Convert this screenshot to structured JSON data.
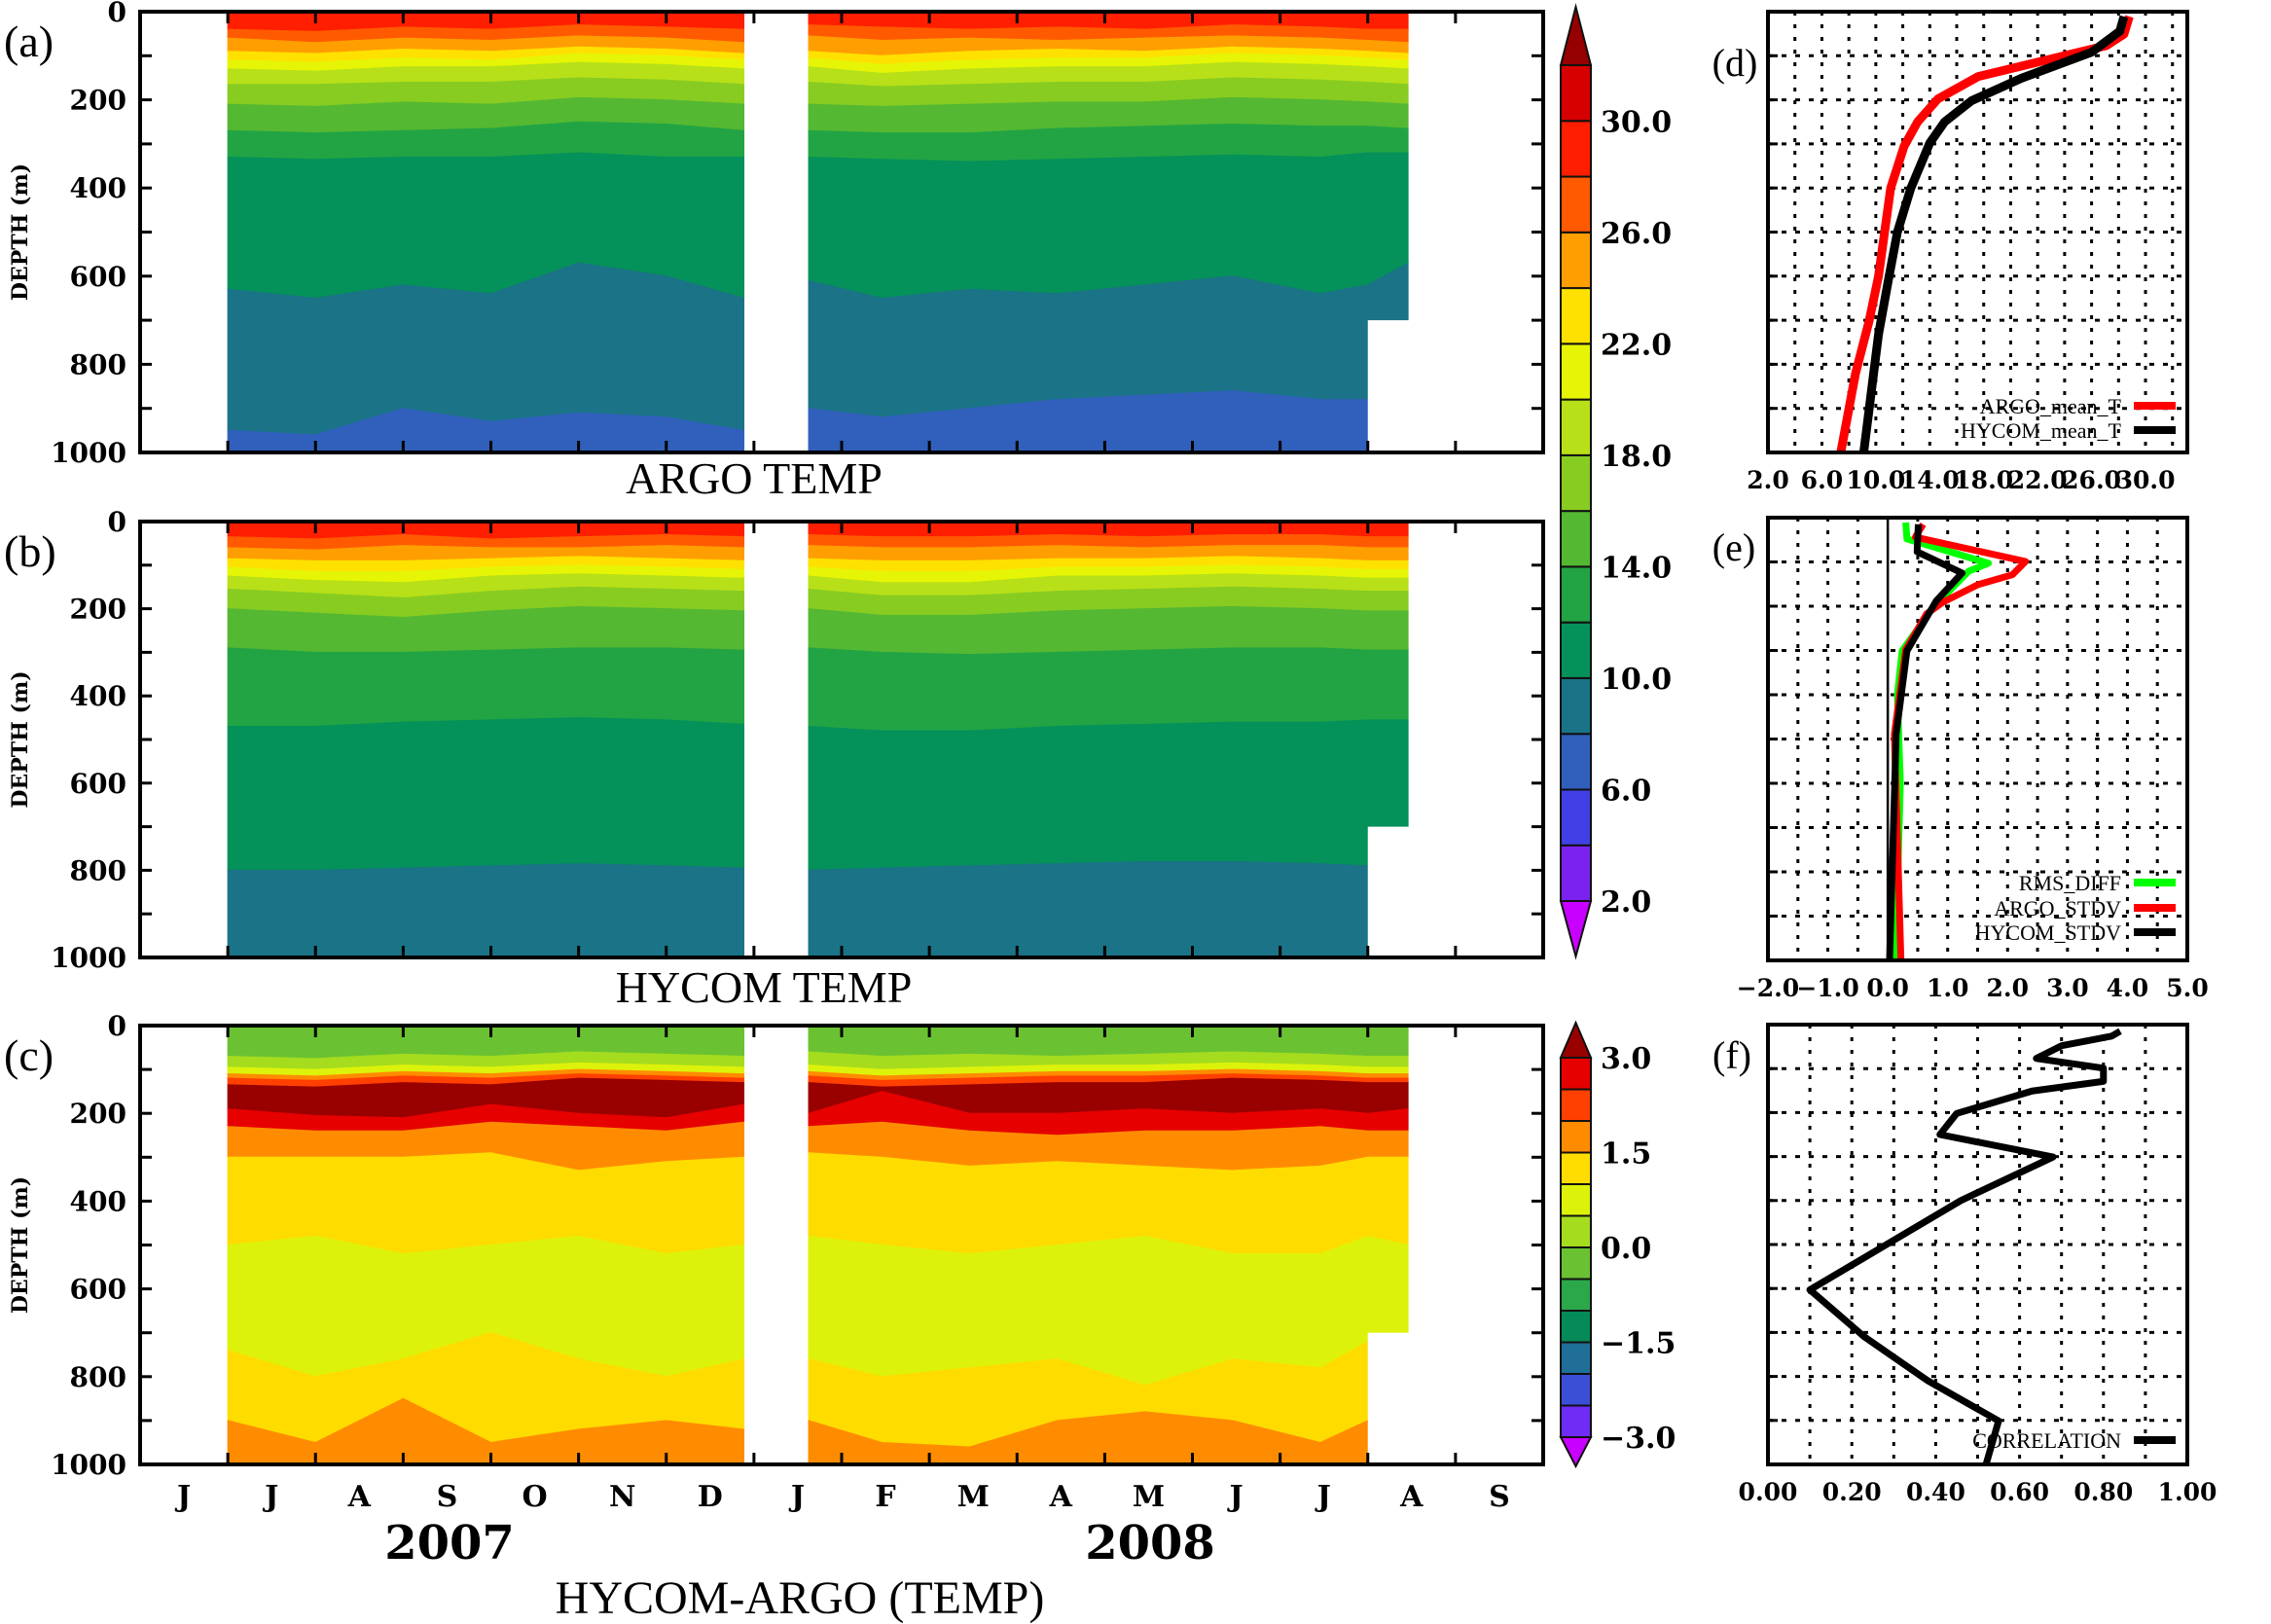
{
  "figure": {
    "x_axis": {
      "month_labels": [
        "J",
        "J",
        "A",
        "S",
        "O",
        "N",
        "D",
        "J",
        "F",
        "M",
        "A",
        "M",
        "J",
        "J",
        "A",
        "S"
      ],
      "start": "2007-06-01",
      "end": "2008-09-30",
      "year_labels": [
        "2007",
        "2008"
      ]
    },
    "depth_ticks": [
      "0",
      "200",
      "400",
      "600",
      "800",
      "1000"
    ],
    "ylabel": "DEPTH (m)"
  },
  "chart_data": [
    {
      "type": "heatmap",
      "panel_label": "(a)",
      "title": "ARGO TEMP",
      "ylabel": "DEPTH (m)",
      "ylim": [
        1000,
        0
      ],
      "times": [
        "2007-07-01",
        "2007-08-01",
        "2007-09-01",
        "2007-10-01",
        "2007-11-01",
        "2007-12-01",
        "2007-12-28",
        "2008-01-20",
        "2008-02-15",
        "2008-03-15",
        "2008-04-15",
        "2008-05-15",
        "2008-06-15",
        "2008-07-15",
        "2008-08-01",
        "2008-08-15"
      ],
      "segments": [
        [
          "2007-07-01",
          "2007-12-28"
        ],
        [
          "2008-01-20",
          "2008-08-15"
        ]
      ],
      "deep_cutoff": {
        "depth": 700,
        "date": "2008-08-01"
      },
      "isotherm_levels": [
        28,
        26,
        24,
        22,
        20,
        18,
        16,
        14,
        12,
        10,
        8
      ],
      "isotherm_depths": [
        [
          40,
          45,
          35,
          40,
          30,
          35,
          40,
          30,
          35,
          40,
          35,
          40,
          30,
          35,
          40,
          40
        ],
        [
          60,
          70,
          60,
          65,
          55,
          60,
          70,
          55,
          65,
          60,
          65,
          60,
          55,
          60,
          65,
          70
        ],
        [
          90,
          95,
          85,
          90,
          80,
          85,
          95,
          90,
          100,
          90,
          85,
          90,
          80,
          85,
          90,
          95
        ],
        [
          110,
          115,
          105,
          110,
          95,
          100,
          110,
          105,
          120,
          110,
          105,
          105,
          95,
          100,
          105,
          110
        ],
        [
          130,
          135,
          125,
          125,
          115,
          120,
          130,
          125,
          140,
          130,
          125,
          125,
          115,
          120,
          125,
          130
        ],
        [
          165,
          165,
          160,
          160,
          150,
          155,
          165,
          160,
          170,
          165,
          160,
          160,
          150,
          155,
          160,
          165
        ],
        [
          210,
          215,
          205,
          210,
          195,
          200,
          210,
          210,
          215,
          210,
          205,
          205,
          195,
          200,
          205,
          210
        ],
        [
          270,
          275,
          270,
          265,
          250,
          255,
          270,
          270,
          275,
          275,
          265,
          260,
          255,
          260,
          260,
          265
        ],
        [
          330,
          335,
          330,
          330,
          320,
          330,
          330,
          330,
          335,
          340,
          335,
          330,
          325,
          330,
          320,
          320
        ],
        [
          630,
          650,
          620,
          640,
          570,
          600,
          650,
          610,
          650,
          630,
          640,
          620,
          600,
          640,
          620,
          570
        ],
        [
          950,
          960,
          900,
          930,
          910,
          920,
          950,
          900,
          920,
          900,
          880,
          870,
          860,
          880,
          880,
          870
        ]
      ]
    },
    {
      "type": "heatmap",
      "panel_label": "(b)",
      "title": "HYCOM TEMP",
      "ylabel": "DEPTH (m)",
      "ylim": [
        1000,
        0
      ],
      "isotherm_levels": [
        28,
        26,
        24,
        22,
        20,
        18,
        16,
        14,
        12,
        10
      ],
      "isotherm_depths": [
        [
          35,
          40,
          30,
          40,
          35,
          30,
          35,
          30,
          35,
          35,
          30,
          35,
          30,
          30,
          35,
          35
        ],
        [
          60,
          65,
          55,
          60,
          60,
          55,
          60,
          55,
          60,
          60,
          55,
          60,
          55,
          55,
          60,
          60
        ],
        [
          85,
          90,
          90,
          85,
          80,
          85,
          90,
          85,
          90,
          90,
          85,
          85,
          80,
          85,
          90,
          90
        ],
        [
          105,
          115,
          115,
          105,
          100,
          105,
          110,
          105,
          115,
          115,
          105,
          105,
          100,
          105,
          110,
          110
        ],
        [
          125,
          135,
          140,
          125,
          120,
          125,
          130,
          125,
          140,
          140,
          125,
          125,
          120,
          125,
          130,
          130
        ],
        [
          155,
          165,
          175,
          160,
          150,
          155,
          160,
          155,
          170,
          170,
          160,
          155,
          150,
          155,
          160,
          160
        ],
        [
          200,
          210,
          220,
          205,
          195,
          200,
          205,
          200,
          215,
          215,
          205,
          200,
          195,
          200,
          205,
          205
        ],
        [
          290,
          300,
          300,
          295,
          290,
          290,
          295,
          290,
          300,
          305,
          300,
          295,
          290,
          290,
          295,
          295
        ],
        [
          470,
          470,
          460,
          455,
          450,
          455,
          465,
          470,
          480,
          480,
          470,
          465,
          460,
          460,
          455,
          455
        ],
        [
          800,
          800,
          795,
          790,
          785,
          790,
          795,
          800,
          795,
          790,
          785,
          780,
          780,
          785,
          790,
          790
        ]
      ],
      "colorbar": {
        "bin_lower_bounds": [
          2,
          4,
          6,
          8,
          10,
          12,
          14,
          16,
          18,
          20,
          22,
          24,
          26,
          28,
          30
        ],
        "colors": [
          "#7b22f0",
          "#4040e6",
          "#3060bc",
          "#1a7386",
          "#05915a",
          "#22a444",
          "#55b832",
          "#88cc22",
          "#b8e018",
          "#e6f505",
          "#ffe100",
          "#ff9e00",
          "#ff5a00",
          "#ff1e00",
          "#d60000"
        ],
        "under_color": "#c800ff",
        "over_color": "#960000",
        "range": [
          2,
          32
        ],
        "tick_values": [
          30,
          26,
          22,
          18,
          14,
          10,
          6,
          2
        ],
        "tick_labels": [
          "30.0",
          "26.0",
          "22.0",
          "18.0",
          "14.0",
          "10.0",
          "6.0",
          "2.0"
        ]
      }
    },
    {
      "type": "heatmap",
      "panel_label": "(c)",
      "title": "HYCOM-ARGO (TEMP)",
      "ylabel": "DEPTH (m)",
      "ylim": [
        1000,
        0
      ],
      "layers": [
        {
          "value": -0.25,
          "bottom": [
            70,
            75,
            65,
            70,
            60,
            65,
            70,
            60,
            70,
            65,
            70,
            65,
            60,
            65,
            70,
            70
          ]
        },
        {
          "value": 0.25,
          "bottom": [
            95,
            100,
            90,
            95,
            85,
            90,
            95,
            90,
            100,
            95,
            90,
            90,
            85,
            90,
            95,
            95
          ]
        },
        {
          "value": 0.75,
          "bottom": [
            110,
            115,
            105,
            110,
            100,
            105,
            110,
            105,
            115,
            110,
            105,
            105,
            100,
            105,
            110,
            110
          ]
        },
        {
          "value": 1.75,
          "bottom": [
            120,
            125,
            115,
            120,
            110,
            115,
            120,
            115,
            125,
            120,
            115,
            115,
            110,
            115,
            120,
            120
          ]
        },
        {
          "value": 2.25,
          "bottom": [
            135,
            140,
            130,
            135,
            120,
            125,
            130,
            130,
            140,
            135,
            130,
            130,
            120,
            125,
            130,
            130
          ]
        },
        {
          "value": 3.2,
          "bottom": [
            190,
            205,
            210,
            180,
            200,
            210,
            180,
            200,
            150,
            200,
            200,
            190,
            200,
            190,
            200,
            190
          ]
        },
        {
          "value": 2.75,
          "bottom": [
            230,
            240,
            240,
            220,
            230,
            240,
            220,
            230,
            220,
            240,
            250,
            240,
            240,
            230,
            240,
            240
          ]
        },
        {
          "value": 1.75,
          "bottom": [
            300,
            300,
            300,
            290,
            330,
            310,
            300,
            290,
            300,
            320,
            310,
            320,
            330,
            320,
            300,
            300
          ]
        },
        {
          "value": 1.25,
          "bottom": [
            500,
            480,
            520,
            500,
            480,
            520,
            500,
            480,
            500,
            520,
            500,
            480,
            520,
            520,
            480,
            500
          ]
        },
        {
          "value": 0.75,
          "bottom": [
            740,
            800,
            760,
            700,
            760,
            800,
            760,
            760,
            800,
            780,
            760,
            820,
            760,
            780,
            720,
            720
          ]
        },
        {
          "value": 1.25,
          "bottom": [
            900,
            950,
            850,
            950,
            920,
            900,
            920,
            900,
            950,
            960,
            900,
            880,
            900,
            950,
            900,
            900
          ]
        },
        {
          "value": 1.75,
          "bottom": [
            1000,
            1000,
            1000,
            1000,
            1000,
            1000,
            1000,
            1000,
            1000,
            1000,
            1000,
            1000,
            1000,
            1000,
            1000,
            1000
          ]
        }
      ],
      "colorbar": {
        "bin_lower_bounds": [
          -3,
          -2.5,
          -2,
          -1.5,
          -1,
          -0.5,
          0,
          0.5,
          1,
          1.5,
          2,
          2.5
        ],
        "colors": [
          "#6e2cf5",
          "#3b4fd6",
          "#1f6f99",
          "#058a5a",
          "#2ba84a",
          "#6ac232",
          "#a5dc1e",
          "#ddf20a",
          "#ffdc00",
          "#ff8c00",
          "#ff4000",
          "#e60000"
        ],
        "under_color": "#c800ff",
        "over_color": "#990000",
        "range": [
          -3,
          3
        ],
        "tick_values": [
          3,
          1.5,
          0,
          -1.5,
          -3
        ],
        "tick_labels": [
          "3.0",
          "1.5",
          "0.0",
          "−1.5",
          "−3.0"
        ]
      }
    },
    {
      "type": "line",
      "panel_label": "(d)",
      "xlim": [
        2,
        33.1
      ],
      "ylim": [
        1000,
        0
      ],
      "grid": true,
      "grid_x_step": 2,
      "grid_y_step": 100,
      "x_tick_values": [
        2,
        6,
        10,
        14,
        18,
        22,
        26,
        30
      ],
      "x_tick_labels": [
        "2.0",
        "6.0",
        "10.0",
        "14.0",
        "18.0",
        "22.0",
        "26.0",
        "30.0"
      ],
      "legend_position": "bottom-right",
      "series": [
        {
          "name": "ARGO_mean_T",
          "color": "#ff0000",
          "depth": [
            11,
            51,
            77,
            147,
            198,
            250,
            305,
            400,
            600,
            702,
            820,
            1000
          ],
          "values": [
            28.8,
            28.4,
            27.1,
            17.6,
            14.6,
            13.1,
            12.1,
            11.1,
            10.2,
            9.5,
            8.5,
            7.4
          ]
        },
        {
          "name": "HYCOM_mean_T",
          "color": "#000000",
          "depth": [
            11,
            44,
            92,
            151,
            202,
            250,
            298,
            400,
            500,
            614,
            732,
            1000
          ],
          "values": [
            28.4,
            28.1,
            26.0,
            20.8,
            17.1,
            15.1,
            14.0,
            12.6,
            11.6,
            10.9,
            10.2,
            9.1
          ]
        }
      ]
    },
    {
      "type": "line",
      "panel_label": "(e)",
      "xlim": [
        -2,
        5
      ],
      "ylim": [
        1000,
        0
      ],
      "grid": true,
      "grid_x_step": 0.5,
      "grid_y_step": 100,
      "x_tick_values": [
        -2,
        -1,
        0,
        1,
        2,
        3,
        4,
        5
      ],
      "x_tick_labels": [
        "−2.0",
        "−1.0",
        "0.0",
        "1.0",
        "2.0",
        "3.0",
        "4.0",
        "5.0"
      ],
      "legend_position": "bottom-right",
      "series": [
        {
          "name": "RMS_DIFF",
          "color": "#00ff00",
          "depth": [
            11,
            48,
            103,
            121,
            202,
            301,
            400,
            600,
            1000
          ],
          "values": [
            0.3,
            0.32,
            1.68,
            1.35,
            0.76,
            0.24,
            0.16,
            0.21,
            0.13
          ]
        },
        {
          "name": "ARGO_STDV",
          "color": "#ff0000",
          "depth": [
            15,
            44,
            99,
            129,
            151,
            191,
            217,
            298,
            489,
            1000
          ],
          "values": [
            0.59,
            0.46,
            2.3,
            2.08,
            1.51,
            0.92,
            0.65,
            0.3,
            0.11,
            0.22
          ]
        },
        {
          "name": "HYCOM_STDV",
          "color": "#000000",
          "depth": [
            15,
            77,
            125,
            188,
            301,
            489,
            1000
          ],
          "values": [
            0.51,
            0.49,
            1.24,
            0.81,
            0.32,
            0.14,
            0.03
          ]
        }
      ]
    },
    {
      "type": "line",
      "panel_label": "(f)",
      "xlim": [
        0,
        1
      ],
      "ylim": [
        1000,
        0
      ],
      "grid": true,
      "grid_x_step": 0.1,
      "grid_y_step": 100,
      "x_tick_values": [
        0,
        0.2,
        0.4,
        0.6,
        0.8,
        1.0
      ],
      "x_tick_labels": [
        "0.00",
        "0.20",
        "0.40",
        "0.60",
        "0.80",
        "1.00"
      ],
      "legend_position": "bottom-right",
      "series": [
        {
          "name": "CORRELATION",
          "color": "#000000",
          "depth": [
            15,
            26,
            48,
            77,
            99,
            129,
            151,
            202,
            250,
            301,
            400,
            603,
            710,
            809,
            901,
            1000
          ],
          "values": [
            0.84,
            0.82,
            0.7,
            0.64,
            0.8,
            0.8,
            0.63,
            0.45,
            0.41,
            0.68,
            0.46,
            0.1,
            0.23,
            0.38,
            0.55,
            0.52
          ]
        }
      ]
    }
  ]
}
